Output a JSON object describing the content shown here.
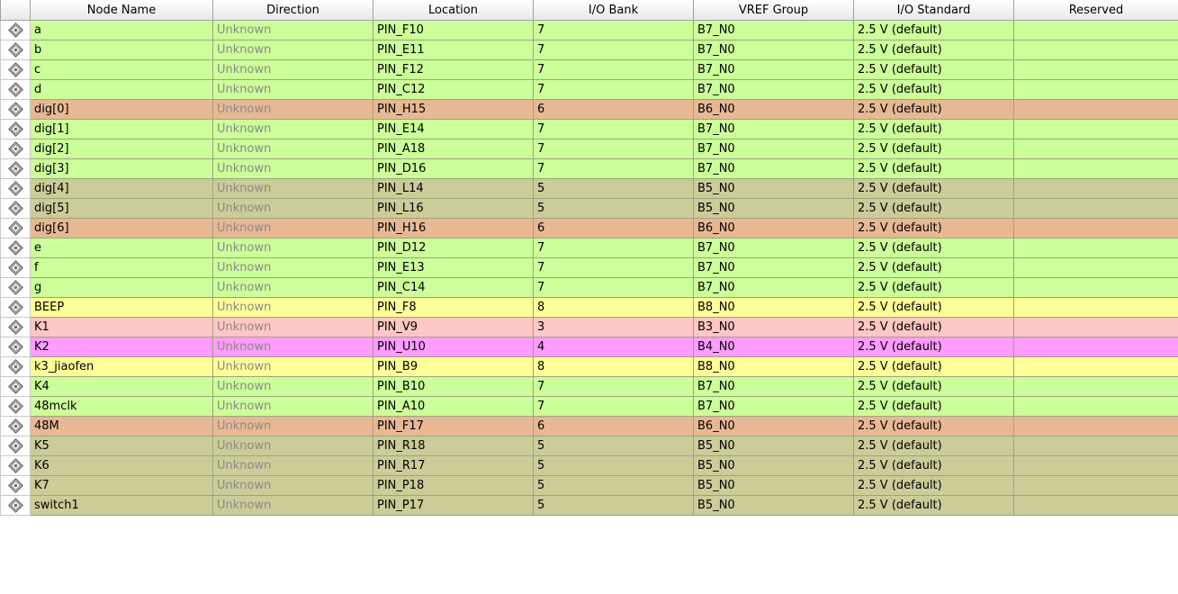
{
  "columns": [
    "Node Name",
    "Direction",
    "Location",
    "I/O Bank",
    "VREF Group",
    "I/O Standard",
    "Reserved"
  ],
  "colors": {
    "bank7": "#ccff99",
    "bank6": "#e8b894",
    "bank5": "#cccc99",
    "bank8": "#ffff99",
    "bank3": "#ffc6c6",
    "bank4": "#ff9cff"
  },
  "icon": "pin-diamond-icon",
  "rows": [
    {
      "node": "a",
      "direction": "Unknown",
      "location": "PIN_F10",
      "bank": "7",
      "vref": "B7_N0",
      "standard": "2.5 V (default)",
      "reserved": ""
    },
    {
      "node": "b",
      "direction": "Unknown",
      "location": "PIN_E11",
      "bank": "7",
      "vref": "B7_N0",
      "standard": "2.5 V (default)",
      "reserved": ""
    },
    {
      "node": "c",
      "direction": "Unknown",
      "location": "PIN_F12",
      "bank": "7",
      "vref": "B7_N0",
      "standard": "2.5 V (default)",
      "reserved": ""
    },
    {
      "node": "d",
      "direction": "Unknown",
      "location": "PIN_C12",
      "bank": "7",
      "vref": "B7_N0",
      "standard": "2.5 V (default)",
      "reserved": ""
    },
    {
      "node": "dig[0]",
      "direction": "Unknown",
      "location": "PIN_H15",
      "bank": "6",
      "vref": "B6_N0",
      "standard": "2.5 V (default)",
      "reserved": ""
    },
    {
      "node": "dig[1]",
      "direction": "Unknown",
      "location": "PIN_E14",
      "bank": "7",
      "vref": "B7_N0",
      "standard": "2.5 V (default)",
      "reserved": ""
    },
    {
      "node": "dig[2]",
      "direction": "Unknown",
      "location": "PIN_A18",
      "bank": "7",
      "vref": "B7_N0",
      "standard": "2.5 V (default)",
      "reserved": ""
    },
    {
      "node": "dig[3]",
      "direction": "Unknown",
      "location": "PIN_D16",
      "bank": "7",
      "vref": "B7_N0",
      "standard": "2.5 V (default)",
      "reserved": ""
    },
    {
      "node": "dig[4]",
      "direction": "Unknown",
      "location": "PIN_L14",
      "bank": "5",
      "vref": "B5_N0",
      "standard": "2.5 V (default)",
      "reserved": ""
    },
    {
      "node": "dig[5]",
      "direction": "Unknown",
      "location": "PIN_L16",
      "bank": "5",
      "vref": "B5_N0",
      "standard": "2.5 V (default)",
      "reserved": ""
    },
    {
      "node": "dig[6]",
      "direction": "Unknown",
      "location": "PIN_H16",
      "bank": "6",
      "vref": "B6_N0",
      "standard": "2.5 V (default)",
      "reserved": ""
    },
    {
      "node": "e",
      "direction": "Unknown",
      "location": "PIN_D12",
      "bank": "7",
      "vref": "B7_N0",
      "standard": "2.5 V (default)",
      "reserved": ""
    },
    {
      "node": "f",
      "direction": "Unknown",
      "location": "PIN_E13",
      "bank": "7",
      "vref": "B7_N0",
      "standard": "2.5 V (default)",
      "reserved": ""
    },
    {
      "node": "g",
      "direction": "Unknown",
      "location": "PIN_C14",
      "bank": "7",
      "vref": "B7_N0",
      "standard": "2.5 V (default)",
      "reserved": ""
    },
    {
      "node": "BEEP",
      "direction": "Unknown",
      "location": "PIN_F8",
      "bank": "8",
      "vref": "B8_N0",
      "standard": "2.5 V (default)",
      "reserved": ""
    },
    {
      "node": "K1",
      "direction": "Unknown",
      "location": "PIN_V9",
      "bank": "3",
      "vref": "B3_N0",
      "standard": "2.5 V (default)",
      "reserved": ""
    },
    {
      "node": "K2",
      "direction": "Unknown",
      "location": "PIN_U10",
      "bank": "4",
      "vref": "B4_N0",
      "standard": "2.5 V (default)",
      "reserved": ""
    },
    {
      "node": "k3_jiaofen",
      "direction": "Unknown",
      "location": "PIN_B9",
      "bank": "8",
      "vref": "B8_N0",
      "standard": "2.5 V (default)",
      "reserved": ""
    },
    {
      "node": "K4",
      "direction": "Unknown",
      "location": "PIN_B10",
      "bank": "7",
      "vref": "B7_N0",
      "standard": "2.5 V (default)",
      "reserved": ""
    },
    {
      "node": "48mclk",
      "direction": "Unknown",
      "location": "PIN_A10",
      "bank": "7",
      "vref": "B7_N0",
      "standard": "2.5 V (default)",
      "reserved": ""
    },
    {
      "node": "48M",
      "direction": "Unknown",
      "location": "PIN_F17",
      "bank": "6",
      "vref": "B6_N0",
      "standard": "2.5 V (default)",
      "reserved": ""
    },
    {
      "node": "K5",
      "direction": "Unknown",
      "location": "PIN_R18",
      "bank": "5",
      "vref": "B5_N0",
      "standard": "2.5 V (default)",
      "reserved": ""
    },
    {
      "node": "K6",
      "direction": "Unknown",
      "location": "PIN_R17",
      "bank": "5",
      "vref": "B5_N0",
      "standard": "2.5 V (default)",
      "reserved": ""
    },
    {
      "node": "K7",
      "direction": "Unknown",
      "location": "PIN_P18",
      "bank": "5",
      "vref": "B5_N0",
      "standard": "2.5 V (default)",
      "reserved": ""
    },
    {
      "node": "switch1",
      "direction": "Unknown",
      "location": "PIN_P17",
      "bank": "5",
      "vref": "B5_N0",
      "standard": "2.5 V (default)",
      "reserved": ""
    }
  ]
}
